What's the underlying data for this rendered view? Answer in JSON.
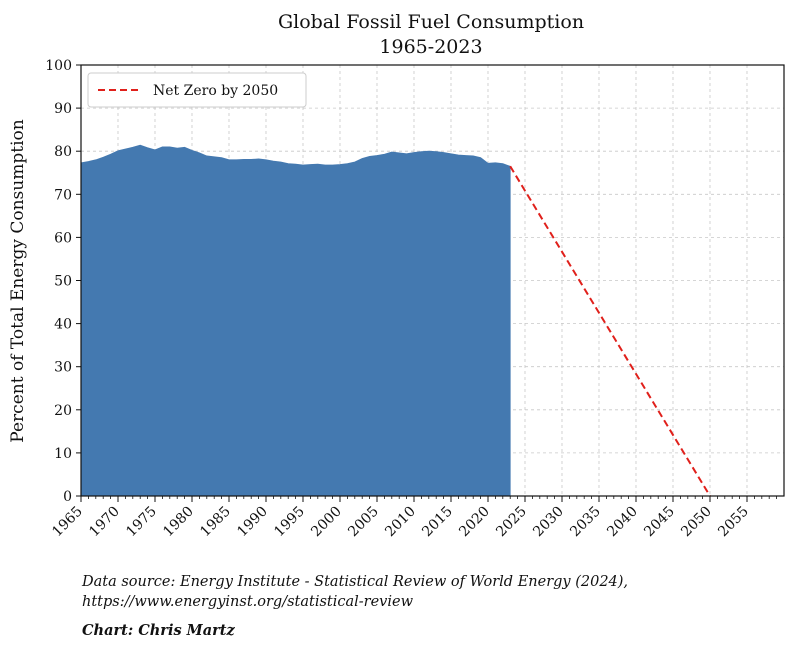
{
  "chart_data": {
    "type": "area",
    "title": "Global Fossil Fuel Consumption",
    "subtitle": "1965-2023",
    "xlabel": "",
    "ylabel": "Percent of Total Energy Consumption",
    "xlim": [
      1965,
      2060
    ],
    "ylim": [
      0,
      100
    ],
    "x_ticks": [
      1965,
      1970,
      1975,
      1980,
      1985,
      1990,
      1995,
      2000,
      2005,
      2010,
      2015,
      2020,
      2025,
      2030,
      2035,
      2040,
      2045,
      2050,
      2055
    ],
    "y_ticks": [
      0,
      10,
      20,
      30,
      40,
      50,
      60,
      70,
      80,
      90,
      100
    ],
    "grid": true,
    "legend_position": "top-left",
    "series": [
      {
        "type": "area",
        "color": "#4479b0",
        "x": [
          1965,
          1966,
          1967,
          1968,
          1969,
          1970,
          1971,
          1972,
          1973,
          1974,
          1975,
          1976,
          1977,
          1978,
          1979,
          1980,
          1981,
          1982,
          1983,
          1984,
          1985,
          1986,
          1987,
          1988,
          1989,
          1990,
          1991,
          1992,
          1993,
          1994,
          1995,
          1996,
          1997,
          1998,
          1999,
          2000,
          2001,
          2002,
          2003,
          2004,
          2005,
          2006,
          2007,
          2008,
          2009,
          2010,
          2011,
          2012,
          2013,
          2014,
          2015,
          2016,
          2017,
          2018,
          2019,
          2020,
          2021,
          2022,
          2023
        ],
        "y": [
          77.3,
          77.6,
          78.0,
          78.6,
          79.3,
          80.1,
          80.5,
          80.9,
          81.4,
          80.8,
          80.3,
          81.0,
          81.0,
          80.7,
          80.9,
          80.2,
          79.6,
          78.9,
          78.7,
          78.5,
          78.0,
          78.0,
          78.1,
          78.1,
          78.2,
          78.0,
          77.7,
          77.5,
          77.1,
          77.0,
          76.8,
          76.9,
          77.0,
          76.8,
          76.8,
          76.9,
          77.1,
          77.5,
          78.3,
          78.8,
          79.0,
          79.3,
          79.8,
          79.6,
          79.4,
          79.7,
          79.9,
          80.0,
          79.9,
          79.7,
          79.4,
          79.1,
          79.0,
          78.9,
          78.5,
          77.2,
          77.3,
          77.1,
          76.5
        ]
      },
      {
        "type": "line",
        "name": "Net Zero by 2050",
        "color": "#e0201b",
        "style": "dashed",
        "x": [
          2023,
          2050
        ],
        "y": [
          76.5,
          0
        ]
      }
    ]
  },
  "footer": {
    "source_line1": "Data source: Energy Institute - Statistical Review of World Energy (2024),",
    "source_line2": "https://www.energyinst.org/statistical-review",
    "credit": "Chart: Chris Martz"
  }
}
